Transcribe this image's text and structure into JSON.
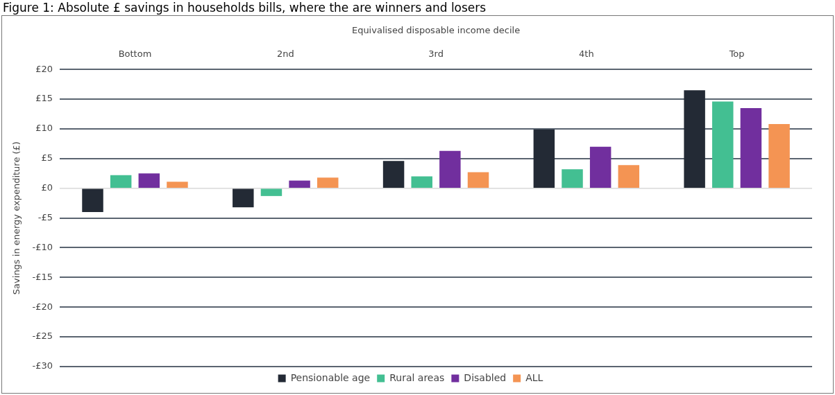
{
  "chart_data": {
    "type": "bar",
    "title": "Figure 1: Absolute £ savings in households bills, where the are winners and losers",
    "xlabel": "Equivalised disposable income decile",
    "ylabel": "Savings in energy expenditure (£)",
    "categories": [
      "Bottom",
      "2nd",
      "3rd",
      "4th",
      "Top"
    ],
    "series": [
      {
        "name": "Pensionable age",
        "color": "#232a35",
        "values": [
          -4.0,
          -3.2,
          4.6,
          9.9,
          16.5
        ]
      },
      {
        "name": "Rural areas",
        "color": "#43bf92",
        "values": [
          2.2,
          -1.3,
          2.0,
          3.2,
          14.6
        ]
      },
      {
        "name": "Disabled",
        "color": "#712f9e",
        "values": [
          2.5,
          1.3,
          6.3,
          7.0,
          13.5
        ]
      },
      {
        "name": "ALL",
        "color": "#f49453",
        "values": [
          1.1,
          1.8,
          2.7,
          3.9,
          10.8
        ]
      }
    ],
    "ylim": [
      -30,
      20
    ],
    "yticks": [
      {
        "value": -30,
        "label": "-£30"
      },
      {
        "value": -25,
        "label": "-£25"
      },
      {
        "value": -20,
        "label": "-£20"
      },
      {
        "value": -15,
        "label": "-£15"
      },
      {
        "value": -10,
        "label": "-£10"
      },
      {
        "value": -5,
        "label": "-£5"
      },
      {
        "value": 0,
        "label": "£0"
      },
      {
        "value": 5,
        "label": "£5"
      },
      {
        "value": 10,
        "label": "£10"
      },
      {
        "value": 15,
        "label": "£15"
      },
      {
        "value": 20,
        "label": "£20"
      }
    ],
    "grid": "y",
    "legend": "bottom"
  }
}
